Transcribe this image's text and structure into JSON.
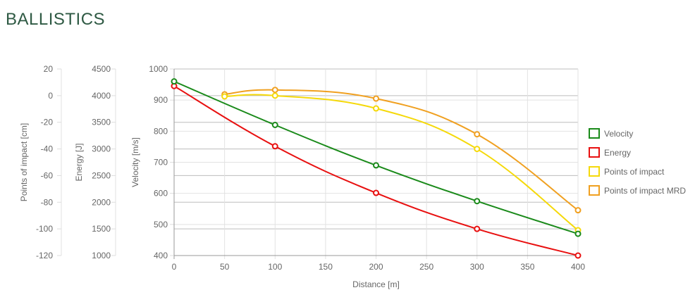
{
  "page": {
    "title": "BALLISTICS"
  },
  "chart_data": {
    "type": "line",
    "xlabel": "Distance [m]",
    "x_ticks": [
      0,
      50,
      100,
      150,
      200,
      250,
      300,
      350,
      400
    ],
    "xlim": [
      0,
      400
    ],
    "grid": true,
    "legend_position": "right",
    "axes": [
      {
        "id": "poi",
        "label": "Points of impact [cm]",
        "ylim": [
          -120,
          20
        ],
        "ticks": [
          20,
          0,
          -20,
          -40,
          -60,
          -80,
          -100,
          -120
        ]
      },
      {
        "id": "energy",
        "label": "Energy [J]",
        "ylim": [
          1000,
          4500
        ],
        "ticks": [
          4500,
          4000,
          3500,
          3000,
          2500,
          2000,
          1500,
          1000
        ]
      },
      {
        "id": "velocity",
        "label": "Velocity [m/s]",
        "ylim": [
          400,
          1000
        ],
        "ticks": [
          1000,
          900,
          800,
          700,
          600,
          500,
          400
        ]
      }
    ],
    "series": [
      {
        "name": "Velocity",
        "axis": "velocity",
        "color": "#1a8a1a",
        "x": [
          0,
          100,
          200,
          300,
          400
        ],
        "values": [
          960,
          820,
          690,
          575,
          470
        ]
      },
      {
        "name": "Energy",
        "axis": "energy",
        "color": "#e81010",
        "x": [
          0,
          100,
          200,
          300,
          400
        ],
        "values": [
          4180,
          3050,
          2175,
          1500,
          1000
        ]
      },
      {
        "name": "Points of impact",
        "axis": "poi",
        "color": "#f5d90a",
        "x": [
          50,
          100,
          200,
          300,
          400
        ],
        "values": [
          -0.6,
          0,
          -9.6,
          -40,
          -101
        ]
      },
      {
        "name": "Points of impact MRD",
        "axis": "poi",
        "color": "#f0a020",
        "x": [
          50,
          100,
          200,
          300,
          400
        ],
        "values": [
          1,
          4.3,
          -2.2,
          -29,
          -86
        ]
      }
    ]
  }
}
